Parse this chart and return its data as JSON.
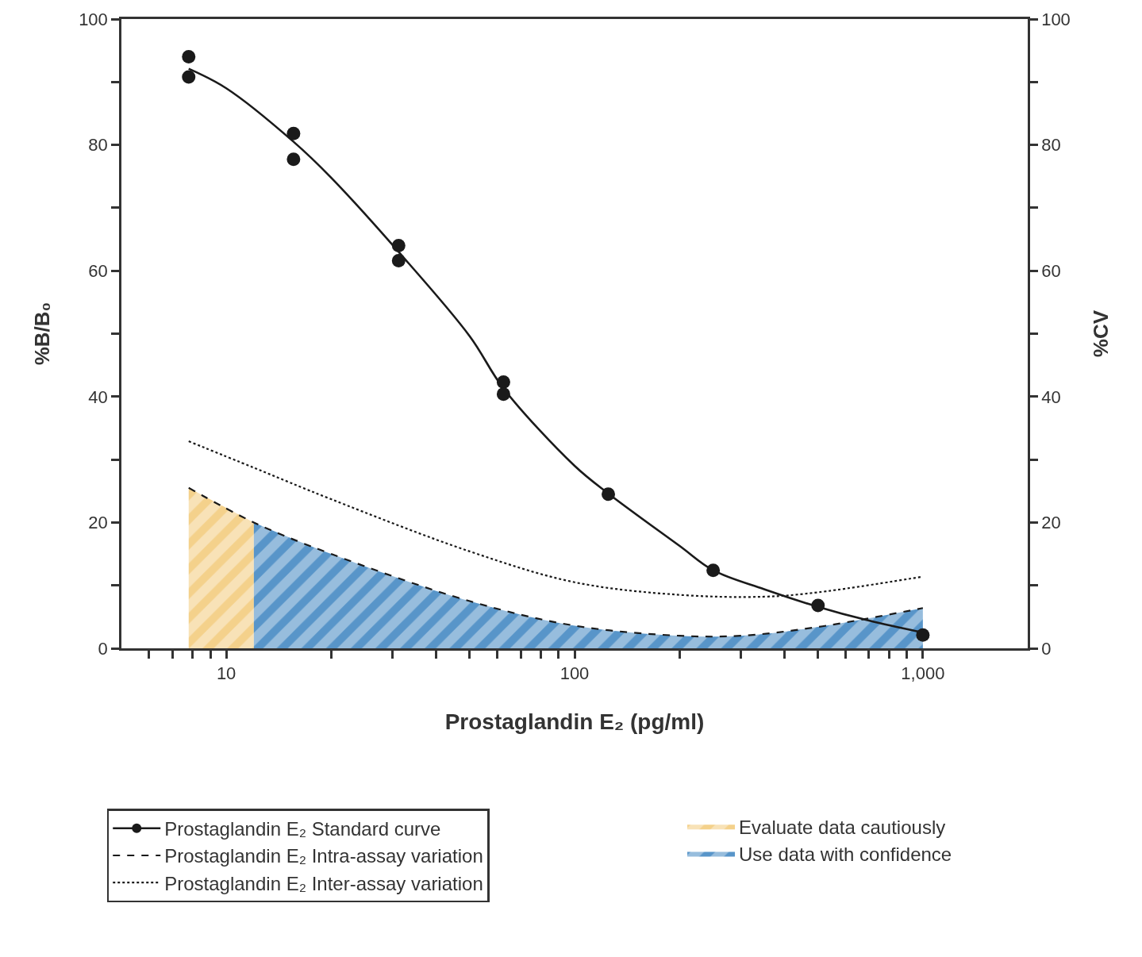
{
  "chart_data": {
    "type": "line",
    "xlabel": "Prostaglandin E₂ (pg/ml)",
    "ylabel": "%B/B₀",
    "y2label": "%CV",
    "log": "x",
    "legend": "bottom",
    "xlim": [
      5,
      2000
    ],
    "xticks": [
      {
        "value": 6,
        "label": null
      },
      {
        "value": 7,
        "label": null
      },
      {
        "value": 8,
        "label": null
      },
      {
        "value": 9,
        "label": null
      },
      10,
      {
        "value": 20,
        "label": null
      },
      {
        "value": 30,
        "label": null
      },
      {
        "value": 40,
        "label": null
      },
      {
        "value": 50,
        "label": null
      },
      {
        "value": 60,
        "label": null
      },
      {
        "value": 70,
        "label": null
      },
      {
        "value": 80,
        "label": null
      },
      {
        "value": 90,
        "label": null
      },
      100,
      {
        "value": 200,
        "label": null
      },
      {
        "value": 300,
        "label": null
      },
      {
        "value": 400,
        "label": null
      },
      {
        "value": 500,
        "label": null
      },
      {
        "value": 600,
        "label": null
      },
      {
        "value": 700,
        "label": null
      },
      {
        "value": 800,
        "label": null
      },
      {
        "value": 900,
        "label": null
      },
      {
        "value": 1000,
        "label": "1,000"
      }
    ],
    "ylim": [
      0,
      100
    ],
    "yticks": [
      0,
      {
        "value": 10,
        "label": null
      },
      20,
      {
        "value": 30,
        "label": null
      },
      40,
      {
        "value": 50,
        "label": null
      },
      60,
      {
        "value": 70,
        "label": null
      },
      80,
      {
        "value": 90,
        "label": null
      },
      100
    ],
    "y2lim": [
      0,
      100
    ],
    "y2ticks": [
      0,
      {
        "value": 10,
        "label": null
      },
      20,
      {
        "value": 30,
        "label": null
      },
      40,
      {
        "value": 50,
        "label": null
      },
      60,
      {
        "value": 70,
        "label": null
      },
      80,
      {
        "value": 90,
        "label": null
      },
      100
    ],
    "series": [
      {
        "type": "area",
        "axis": "y2",
        "name": "Evaluate data cautiously",
        "color": "#f0c060",
        "x": [
          7.8,
          12
        ],
        "values": [
          25.5,
          20
        ]
      },
      {
        "type": "area",
        "axis": "y2",
        "name": "Use data with confidence",
        "color": "#1a6db5",
        "x": [
          12,
          20,
          50,
          100,
          200,
          300,
          500,
          1000
        ],
        "values": [
          20,
          15,
          7.5,
          3.6,
          2.0,
          2.0,
          3.4,
          6.4
        ]
      },
      {
        "color": "#1a1a1a",
        "x": [
          7.8,
          10,
          15.6,
          20,
          31.25,
          50,
          62.5,
          100,
          125,
          200,
          250,
          350,
          500,
          700,
          1000
        ],
        "values": [
          92.1,
          89,
          80.5,
          74.8,
          63,
          49.6,
          41.3,
          29,
          24.6,
          16.3,
          12.4,
          9.4,
          6.6,
          4.4,
          2.5
        ]
      },
      {
        "type": "scatter",
        "name": "Prostaglandin E₂ Standard curve",
        "color": "#1a1a1a",
        "marker": "circle",
        "line_style": "solid",
        "x": [
          7.8,
          7.8,
          15.6,
          15.6,
          31.25,
          31.25,
          62.5,
          62.5,
          125,
          250,
          500,
          1000
        ],
        "values": [
          94,
          90.8,
          81.8,
          77.7,
          64,
          61.6,
          42.3,
          40.4,
          24.5,
          12.4,
          6.8,
          2.1
        ]
      },
      {
        "type": "line",
        "axis": "y2",
        "name": "Prostaglandin E₂ Intra-assay variation",
        "color": "#1a1a1a",
        "line_style": "dashed",
        "x": [
          7.8,
          12,
          20,
          50,
          100,
          200,
          300,
          500,
          1000
        ],
        "values": [
          25.5,
          20,
          15,
          7.5,
          3.6,
          2.0,
          2.0,
          3.4,
          6.4
        ]
      },
      {
        "type": "line",
        "axis": "y2",
        "name": "Prostaglandin E₂ Inter-assay variation",
        "color": "#1a1a1a",
        "line_style": "dotted",
        "x": [
          7.8,
          12,
          20,
          50,
          100,
          200,
          350,
          500,
          1000
        ],
        "values": [
          32.9,
          28.7,
          23.7,
          15.4,
          10.5,
          8.5,
          8.2,
          8.9,
          11.4
        ]
      }
    ]
  }
}
